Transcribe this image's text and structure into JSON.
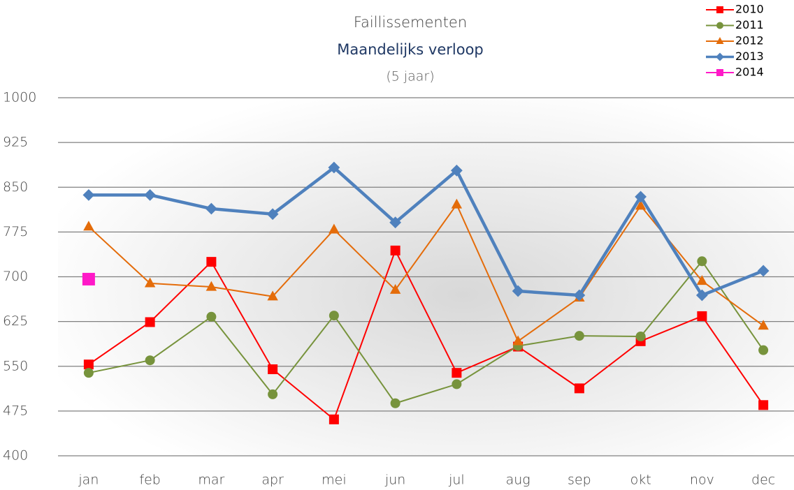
{
  "chart_data": {
    "type": "line",
    "title": "Faillissementen",
    "subtitle": "Maandelijks verloop",
    "note": "(5 jaar)",
    "categories": [
      "jan",
      "feb",
      "mar",
      "apr",
      "mei",
      "jun",
      "jul",
      "aug",
      "sep",
      "okt",
      "nov",
      "dec"
    ],
    "series": [
      {
        "name": "2010",
        "color": "#ff0000",
        "marker": "square",
        "width": 2,
        "values": [
          553,
          624,
          725,
          545,
          461,
          744,
          539,
          583,
          513,
          592,
          634,
          485
        ]
      },
      {
        "name": "2011",
        "color": "#77933c",
        "marker": "circle",
        "width": 2,
        "values": [
          539,
          560,
          633,
          503,
          635,
          488,
          520,
          584,
          601,
          600,
          726,
          577
        ]
      },
      {
        "name": "2012",
        "color": "#e46c0a",
        "marker": "triangle",
        "width": 2,
        "values": [
          784,
          689,
          683,
          667,
          779,
          678,
          821,
          592,
          665,
          819,
          693,
          618
        ]
      },
      {
        "name": "2013",
        "color": "#4f81bd",
        "marker": "diamond",
        "width": 4.5,
        "values": [
          837,
          837,
          814,
          805,
          883,
          791,
          878,
          676,
          669,
          834,
          669,
          710
        ]
      },
      {
        "name": "2014",
        "color": "#ff19c8",
        "marker": "square",
        "width": 2,
        "values": [
          696,
          null,
          null,
          null,
          null,
          null,
          null,
          null,
          null,
          null,
          null,
          null
        ]
      }
    ],
    "ylim": [
      400,
      1000
    ],
    "yticks": [
      400,
      475,
      550,
      625,
      700,
      775,
      850,
      925,
      1000
    ],
    "grid": true,
    "legend": "top-right"
  }
}
